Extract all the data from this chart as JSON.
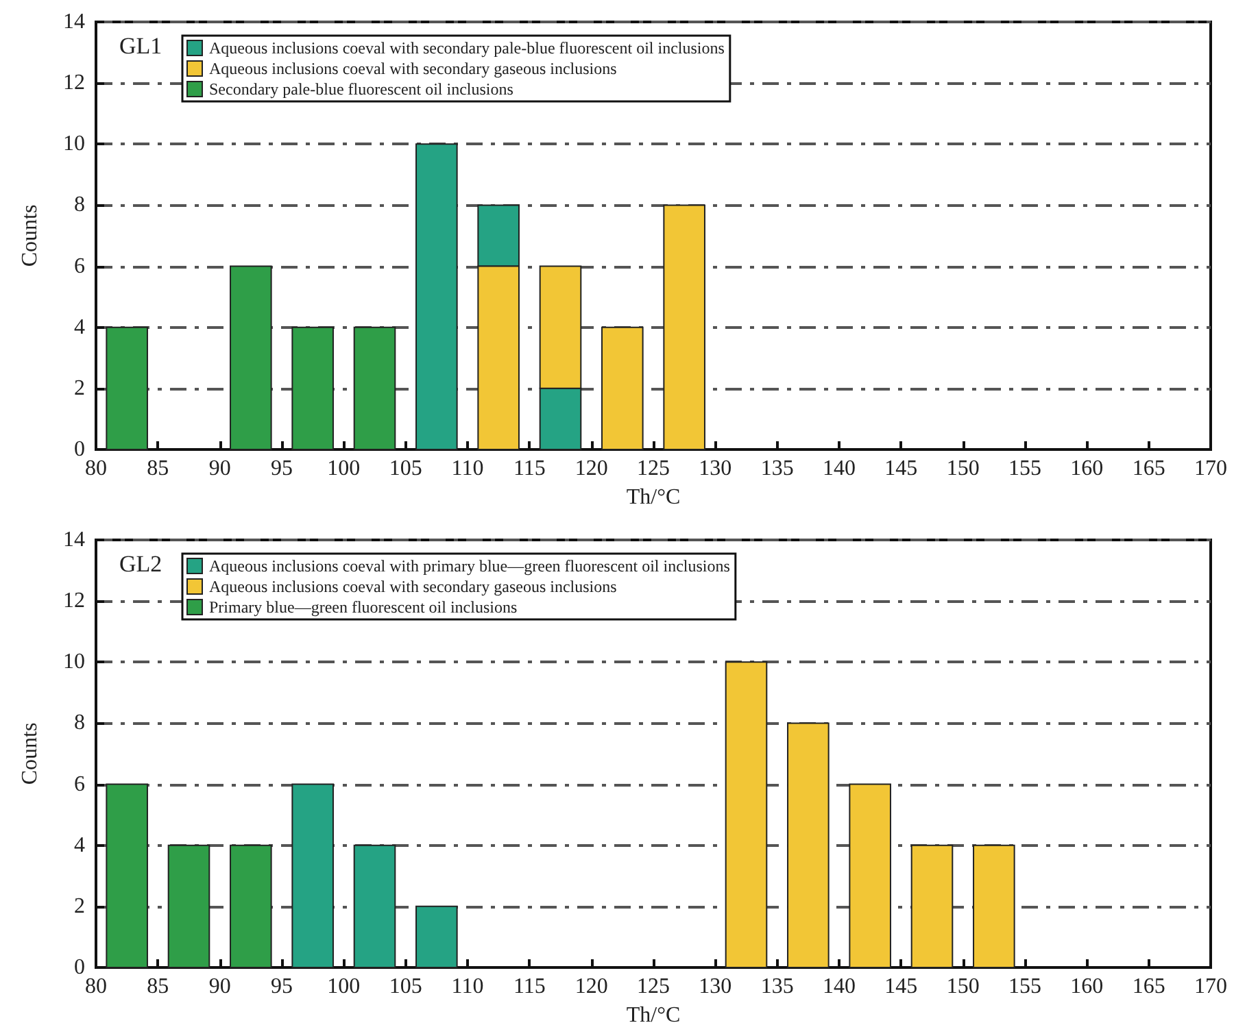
{
  "chart_data": [
    {
      "type": "bar",
      "title": "GL1",
      "xlabel": "Th/°C",
      "ylabel": "Counts",
      "xlim": [
        80,
        170
      ],
      "xticks": [
        80,
        85,
        90,
        95,
        100,
        105,
        110,
        115,
        120,
        125,
        130,
        135,
        140,
        145,
        150,
        155,
        160,
        165,
        170
      ],
      "ylim": [
        0,
        14
      ],
      "yticks": [
        0,
        2,
        4,
        6,
        8,
        10,
        12,
        14
      ],
      "grid": "y",
      "legend": "top left",
      "series": [
        {
          "name": "Aqueous inclusions coeval with secondary pale-blue fluorescent oil inclusions",
          "color": "#25a384",
          "x": [
            107.5,
            112.5,
            117.5
          ],
          "values": [
            10,
            2,
            2
          ],
          "base": [
            0,
            6,
            0
          ]
        },
        {
          "name": "Aqueous inclusions coeval with secondary gaseous inclusions",
          "color": "#f2c636",
          "x": [
            112.5,
            117.5,
            122.5,
            127.5
          ],
          "values": [
            6,
            4,
            4,
            8
          ],
          "base": [
            0,
            2,
            0,
            0
          ]
        },
        {
          "name": "Secondary pale-blue fluorescent oil inclusions",
          "color": "#2f9e48",
          "x": [
            82.5,
            92.5,
            97.5,
            102.5
          ],
          "values": [
            4,
            6,
            4,
            4
          ],
          "base": [
            0,
            0,
            0,
            0
          ]
        }
      ]
    },
    {
      "type": "bar",
      "title": "GL2",
      "xlabel": "Th/°C",
      "ylabel": "Counts",
      "xlim": [
        80,
        170
      ],
      "xticks": [
        80,
        85,
        90,
        95,
        100,
        105,
        110,
        115,
        120,
        125,
        130,
        135,
        140,
        145,
        150,
        155,
        160,
        165,
        170
      ],
      "ylim": [
        0,
        14
      ],
      "yticks": [
        0,
        2,
        4,
        6,
        8,
        10,
        12,
        14
      ],
      "grid": "y",
      "legend": "top left",
      "series": [
        {
          "name": "Aqueous inclusions coeval with primary blue—green fluorescent oil inclusions",
          "color": "#25a384",
          "x": [
            97.5,
            102.5,
            107.5
          ],
          "values": [
            6,
            4,
            2
          ]
        },
        {
          "name": "Aqueous inclusions coeval with secondary gaseous inclusions",
          "color": "#f2c636",
          "x": [
            132.5,
            137.5,
            142.5,
            147.5,
            152.5
          ],
          "values": [
            10,
            8,
            6,
            4,
            4
          ]
        },
        {
          "name": "Primary blue—green fluorescent oil inclusions",
          "color": "#2f9e48",
          "x": [
            82.5,
            87.5,
            92.5
          ],
          "values": [
            6,
            4,
            4
          ]
        }
      ]
    }
  ]
}
